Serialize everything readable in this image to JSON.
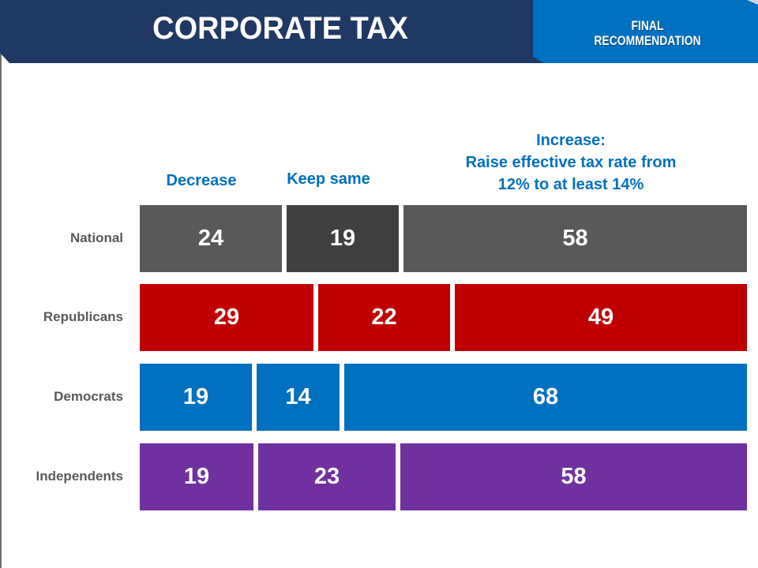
{
  "header": {
    "title": "CORPORATE TAX",
    "badge_line1": "FINAL",
    "badge_line2": "RECOMMENDATION",
    "navy_color": "#1f3864",
    "blue_color": "#0070c0"
  },
  "chart_data": {
    "type": "bar",
    "orientation": "horizontal",
    "stacked": true,
    "title": "CORPORATE TAX",
    "categories": [
      "National",
      "Republicans",
      "Democrats",
      "Independents"
    ],
    "series": [
      {
        "name": "Decrease",
        "values": [
          24,
          29,
          19,
          19
        ]
      },
      {
        "name": "Keep same",
        "values": [
          19,
          22,
          14,
          23
        ]
      },
      {
        "name": "Increase: Raise effective tax rate from 12% to at least 14%",
        "values": [
          58,
          49,
          68,
          58
        ]
      }
    ],
    "column_headers": {
      "decrease": "Decrease",
      "keep_same": "Keep same",
      "increase_line1": "Increase:",
      "increase_line2": "Raise effective tax rate from",
      "increase_line3": "12% to at least 14%"
    },
    "row_colors": {
      "National": [
        "#595959",
        "#404040",
        "#595959"
      ],
      "Republicans": [
        "#c00000",
        "#c00000",
        "#c00000"
      ],
      "Democrats": [
        "#0070c0",
        "#0070c0",
        "#0070c0"
      ],
      "Independents": [
        "#7030a0",
        "#7030a0",
        "#7030a0"
      ]
    },
    "xlabel": "",
    "ylabel": "",
    "grid": false,
    "legend": "column headers above bars"
  }
}
